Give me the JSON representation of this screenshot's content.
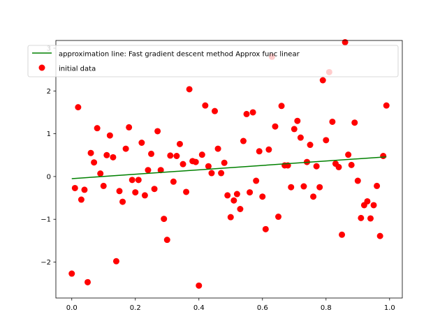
{
  "chart_data": {
    "type": "scatter",
    "title": "",
    "xlabel": "",
    "ylabel": "",
    "xlim": [
      -0.05,
      1.04
    ],
    "ylim": [
      -2.84,
      3.18
    ],
    "xticks": [
      0.0,
      0.2,
      0.4,
      0.6,
      0.8,
      1.0
    ],
    "xtick_labels": [
      "0.0",
      "0.2",
      "0.4",
      "0.6",
      "0.8",
      "1.0"
    ],
    "yticks": [
      -2,
      -1,
      0,
      1,
      2,
      3
    ],
    "ytick_labels": [
      "−2",
      "−1",
      "0",
      "1",
      "2",
      "3"
    ],
    "grid": false,
    "legend_position": "top-left",
    "series": [
      {
        "name": "approximation line: Fast gradient descent method Approx func linear",
        "kind": "line",
        "color": "#008000",
        "x": [
          0.0,
          0.99
        ],
        "y": [
          -0.05,
          0.46
        ]
      },
      {
        "name": "initial data",
        "kind": "scatter",
        "color": "#ff0000",
        "points": [
          [
            0.0,
            -2.27
          ],
          [
            0.01,
            -0.27
          ],
          [
            0.02,
            1.62
          ],
          [
            0.03,
            -0.54
          ],
          [
            0.04,
            -0.31
          ],
          [
            0.05,
            -2.47
          ],
          [
            0.06,
            0.55
          ],
          [
            0.07,
            0.33
          ],
          [
            0.08,
            1.13
          ],
          [
            0.09,
            0.07
          ],
          [
            0.1,
            -0.22
          ],
          [
            0.11,
            0.5
          ],
          [
            0.12,
            0.96
          ],
          [
            0.13,
            0.45
          ],
          [
            0.14,
            -1.98
          ],
          [
            0.15,
            -0.34
          ],
          [
            0.16,
            -0.59
          ],
          [
            0.17,
            0.65
          ],
          [
            0.18,
            1.15
          ],
          [
            0.19,
            -0.08
          ],
          [
            0.2,
            -0.37
          ],
          [
            0.21,
            -0.08
          ],
          [
            0.22,
            0.79
          ],
          [
            0.23,
            -0.44
          ],
          [
            0.24,
            0.15
          ],
          [
            0.25,
            0.53
          ],
          [
            0.26,
            -0.29
          ],
          [
            0.27,
            1.06
          ],
          [
            0.28,
            0.15
          ],
          [
            0.29,
            -0.99
          ],
          [
            0.3,
            -1.48
          ],
          [
            0.31,
            0.49
          ],
          [
            0.32,
            -0.12
          ],
          [
            0.33,
            0.48
          ],
          [
            0.34,
            0.76
          ],
          [
            0.35,
            0.29
          ],
          [
            0.36,
            -0.36
          ],
          [
            0.37,
            2.04
          ],
          [
            0.38,
            0.36
          ],
          [
            0.39,
            0.34
          ],
          [
            0.4,
            -2.55
          ],
          [
            0.41,
            0.51
          ],
          [
            0.42,
            1.66
          ],
          [
            0.43,
            0.24
          ],
          [
            0.44,
            0.08
          ],
          [
            0.45,
            1.53
          ],
          [
            0.46,
            0.65
          ],
          [
            0.47,
            0.08
          ],
          [
            0.48,
            0.32
          ],
          [
            0.49,
            -0.44
          ],
          [
            0.5,
            -0.95
          ],
          [
            0.51,
            -0.56
          ],
          [
            0.52,
            -0.41
          ],
          [
            0.53,
            -0.76
          ],
          [
            0.54,
            0.83
          ],
          [
            0.55,
            1.46
          ],
          [
            0.56,
            -0.37
          ],
          [
            0.57,
            1.5
          ],
          [
            0.58,
            -0.1
          ],
          [
            0.59,
            0.59
          ],
          [
            0.6,
            -0.47
          ],
          [
            0.61,
            -1.23
          ],
          [
            0.62,
            0.63
          ],
          [
            0.63,
            2.8
          ],
          [
            0.64,
            1.17
          ],
          [
            0.65,
            -0.94
          ],
          [
            0.66,
            1.65
          ],
          [
            0.67,
            0.26
          ],
          [
            0.68,
            0.26
          ],
          [
            0.69,
            -0.25
          ],
          [
            0.7,
            1.11
          ],
          [
            0.71,
            1.3
          ],
          [
            0.72,
            0.91
          ],
          [
            0.73,
            -0.23
          ],
          [
            0.74,
            0.34
          ],
          [
            0.75,
            0.74
          ],
          [
            0.76,
            -0.47
          ],
          [
            0.77,
            0.24
          ],
          [
            0.78,
            -0.25
          ],
          [
            0.79,
            2.25
          ],
          [
            0.8,
            0.85
          ],
          [
            0.81,
            2.44
          ],
          [
            0.82,
            1.28
          ],
          [
            0.83,
            0.3
          ],
          [
            0.84,
            0.22
          ],
          [
            0.85,
            -1.36
          ],
          [
            0.86,
            3.14
          ],
          [
            0.87,
            0.51
          ],
          [
            0.88,
            0.27
          ],
          [
            0.89,
            1.26
          ],
          [
            0.9,
            -0.1
          ],
          [
            0.91,
            -0.97
          ],
          [
            0.92,
            -0.67
          ],
          [
            0.93,
            -0.58
          ],
          [
            0.94,
            -0.98
          ],
          [
            0.95,
            -0.67
          ],
          [
            0.96,
            -0.22
          ],
          [
            0.97,
            -1.39
          ],
          [
            0.98,
            0.48
          ],
          [
            0.99,
            1.66
          ]
        ]
      }
    ]
  }
}
